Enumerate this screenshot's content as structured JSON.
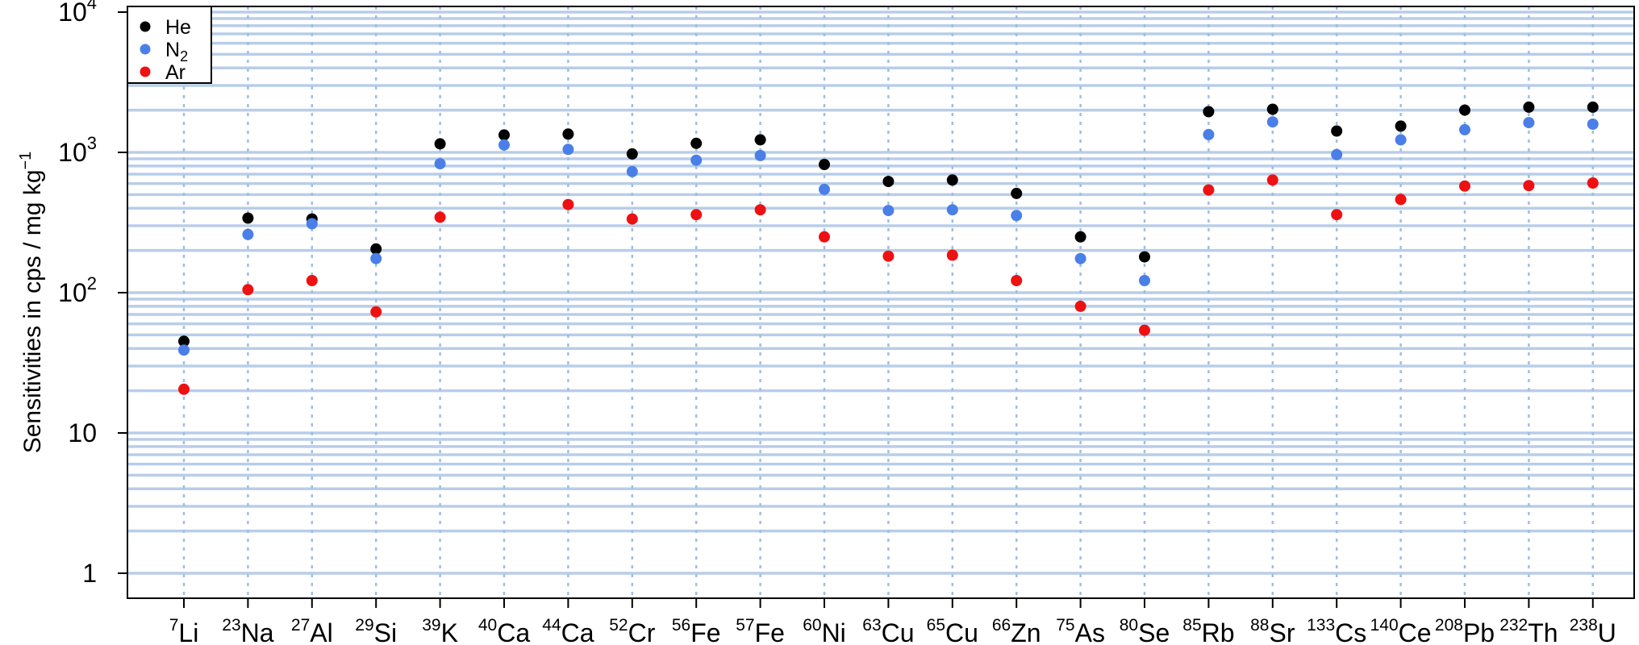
{
  "chart_data": {
    "type": "scatter",
    "ylabel": {
      "main": "Sensitivities in cps / mg kg",
      "sup": "−1"
    },
    "y_scale": "log",
    "ylim": [
      0.7,
      15000
    ],
    "y_ticks": [
      {
        "value": 1,
        "label": "1",
        "sup": ""
      },
      {
        "value": 10,
        "label": "10",
        "sup": ""
      },
      {
        "value": 100,
        "label": "10",
        "sup": "2"
      },
      {
        "value": 1000,
        "label": "10",
        "sup": "3"
      },
      {
        "value": 10000,
        "label": "10",
        "sup": "4"
      }
    ],
    "grid": true,
    "legend_position": "top-left",
    "categories": [
      {
        "mass": "7",
        "el": "Li"
      },
      {
        "mass": "23",
        "el": "Na"
      },
      {
        "mass": "27",
        "el": "Al"
      },
      {
        "mass": "29",
        "el": "Si"
      },
      {
        "mass": "39",
        "el": "K"
      },
      {
        "mass": "40",
        "el": "Ca"
      },
      {
        "mass": "44",
        "el": "Ca"
      },
      {
        "mass": "52",
        "el": "Cr"
      },
      {
        "mass": "56",
        "el": "Fe"
      },
      {
        "mass": "57",
        "el": "Fe"
      },
      {
        "mass": "60",
        "el": "Ni"
      },
      {
        "mass": "63",
        "el": "Cu"
      },
      {
        "mass": "65",
        "el": "Cu"
      },
      {
        "mass": "66",
        "el": "Zn"
      },
      {
        "mass": "75",
        "el": "As"
      },
      {
        "mass": "80",
        "el": "Se"
      },
      {
        "mass": "85",
        "el": "Rb"
      },
      {
        "mass": "88",
        "el": "Sr"
      },
      {
        "mass": "133",
        "el": "Cs"
      },
      {
        "mass": "140",
        "el": "Ce"
      },
      {
        "mass": "208",
        "el": "Pb"
      },
      {
        "mass": "232",
        "el": "Th"
      },
      {
        "mass": "238",
        "el": "U"
      }
    ],
    "series": [
      {
        "name": "He",
        "name_sub": "",
        "color": "#000000",
        "values": [
          45,
          340,
          335,
          205,
          1150,
          1330,
          1350,
          975,
          1160,
          1230,
          820,
          620,
          635,
          510,
          250,
          180,
          1950,
          2030,
          1420,
          1540,
          2000,
          2100,
          2100
        ]
      },
      {
        "name": "N",
        "name_sub": "2",
        "color": "#4a7fe8",
        "values": [
          39,
          260,
          310,
          175,
          830,
          1130,
          1050,
          730,
          880,
          950,
          545,
          385,
          390,
          355,
          175,
          122,
          1340,
          1650,
          965,
          1230,
          1450,
          1630,
          1590
        ]
      },
      {
        "name": "Ar",
        "name_sub": "",
        "color": "#ee1111",
        "values": [
          20.5,
          105,
          122,
          73,
          345,
          null,
          425,
          335,
          360,
          390,
          250,
          182,
          185,
          122,
          80,
          54,
          540,
          635,
          360,
          462,
          575,
          580,
          605
        ]
      }
    ]
  }
}
